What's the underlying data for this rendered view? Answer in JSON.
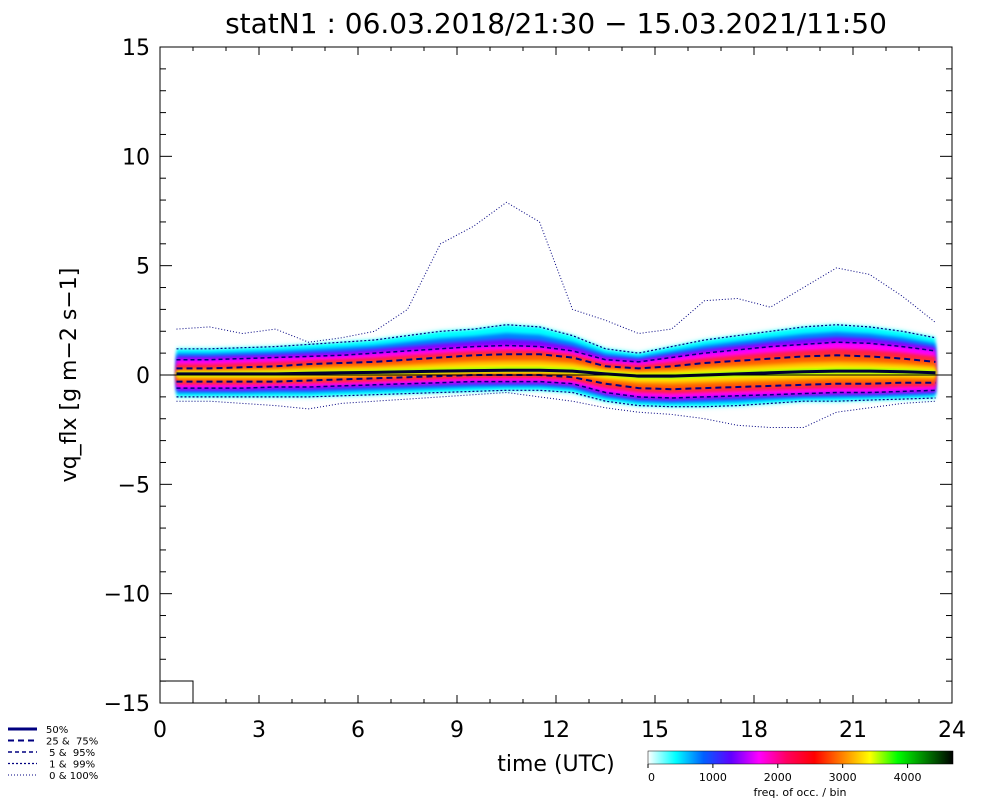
{
  "chart_data": {
    "type": "heatmap",
    "title": "statN1 : 06.03.2018/21:30 − 15.03.2021/11:50",
    "xlabel": "time (UTC)",
    "ylabel": "vq_flx [g m−2 s−1]",
    "xlim": [
      0,
      24
    ],
    "ylim": [
      -15,
      15
    ],
    "x_ticks": [
      "0",
      "3",
      "6",
      "9",
      "12",
      "15",
      "18",
      "21",
      "24"
    ],
    "y_ticks": [
      "15",
      "10",
      "5",
      "0",
      "−5",
      "−10",
      "−15"
    ],
    "x_tick_values": [
      0,
      3,
      6,
      9,
      12,
      15,
      18,
      21,
      24
    ],
    "y_tick_values": [
      15,
      10,
      5,
      0,
      -5,
      -10,
      -15
    ],
    "colorbar": {
      "label": "freq. of occ. / bin",
      "ticks": [
        "0",
        "1000",
        "2000",
        "3000",
        "4000"
      ],
      "tick_values": [
        0,
        1000,
        2000,
        3000,
        4000
      ],
      "range": [
        0,
        4700
      ],
      "colors": [
        "#ffffff",
        "#00ffff",
        "#0060ff",
        "#6000ff",
        "#ff00ff",
        "#ff0060",
        "#ff0000",
        "#ff8000",
        "#ffff00",
        "#00ff00",
        "#008000",
        "#000000"
      ]
    },
    "x": [
      0.5,
      1.5,
      2.5,
      3.5,
      4.5,
      5.5,
      6.5,
      7.5,
      8.5,
      9.5,
      10.5,
      11.5,
      12.5,
      13.5,
      14.5,
      15.5,
      16.5,
      17.5,
      18.5,
      19.5,
      20.5,
      21.5,
      22.5,
      23.5
    ],
    "series": [
      {
        "name": "50%",
        "style": "solid",
        "values": [
          0.05,
          0.05,
          0.05,
          0.05,
          0.08,
          0.1,
          0.12,
          0.15,
          0.18,
          0.2,
          0.22,
          0.22,
          0.18,
          0.05,
          -0.05,
          -0.05,
          0.0,
          0.05,
          0.1,
          0.15,
          0.18,
          0.18,
          0.15,
          0.1
        ]
      },
      {
        "name": "25 & 75%",
        "style": "dashed",
        "values": [
          0.3,
          0.3,
          0.35,
          0.4,
          0.5,
          0.55,
          0.6,
          0.7,
          0.8,
          0.9,
          0.95,
          0.95,
          0.8,
          0.4,
          0.3,
          0.4,
          0.55,
          0.65,
          0.75,
          0.85,
          0.9,
          0.85,
          0.75,
          0.6
        ]
      },
      {
        "name": "25 & 75%",
        "style": "dashed",
        "values": [
          -0.3,
          -0.3,
          -0.3,
          -0.3,
          -0.25,
          -0.2,
          -0.15,
          -0.1,
          -0.05,
          0.0,
          0.0,
          0.0,
          -0.1,
          -0.4,
          -0.6,
          -0.65,
          -0.6,
          -0.55,
          -0.5,
          -0.45,
          -0.4,
          -0.4,
          -0.35,
          -0.35
        ]
      },
      {
        "name": "5 & 95%",
        "style": "dashdot",
        "values": [
          0.7,
          0.7,
          0.75,
          0.8,
          0.85,
          0.9,
          1.0,
          1.1,
          1.2,
          1.3,
          1.35,
          1.3,
          1.1,
          0.7,
          0.6,
          0.8,
          1.0,
          1.15,
          1.3,
          1.4,
          1.5,
          1.45,
          1.3,
          1.1
        ]
      },
      {
        "name": "5 & 95%",
        "style": "dashdot",
        "values": [
          -0.6,
          -0.6,
          -0.6,
          -0.55,
          -0.55,
          -0.5,
          -0.45,
          -0.4,
          -0.35,
          -0.3,
          -0.3,
          -0.3,
          -0.4,
          -0.8,
          -1.0,
          -1.05,
          -1.0,
          -0.95,
          -0.9,
          -0.85,
          -0.8,
          -0.8,
          -0.75,
          -0.7
        ]
      },
      {
        "name": "1 & 99%",
        "style": "dotted",
        "values": [
          1.2,
          1.2,
          1.25,
          1.3,
          1.4,
          1.5,
          1.6,
          1.8,
          2.0,
          2.1,
          2.3,
          2.2,
          1.8,
          1.2,
          1.0,
          1.3,
          1.6,
          1.8,
          2.0,
          2.2,
          2.3,
          2.2,
          2.0,
          1.7
        ]
      },
      {
        "name": "1 & 99%",
        "style": "dotted",
        "values": [
          -1.0,
          -1.0,
          -1.0,
          -1.0,
          -1.0,
          -0.95,
          -0.9,
          -0.85,
          -0.8,
          -0.75,
          -0.7,
          -0.7,
          -0.8,
          -1.2,
          -1.4,
          -1.45,
          -1.45,
          -1.4,
          -1.3,
          -1.2,
          -1.2,
          -1.15,
          -1.1,
          -1.05
        ]
      },
      {
        "name": "0 & 100%",
        "style": "finedot",
        "values": [
          2.1,
          2.2,
          1.9,
          2.1,
          1.5,
          1.7,
          2.0,
          3.0,
          6.0,
          6.8,
          7.9,
          7.0,
          3.0,
          2.5,
          1.9,
          2.1,
          3.4,
          3.5,
          3.1,
          4.0,
          4.9,
          4.6,
          3.6,
          2.4
        ]
      },
      {
        "name": "0 & 100%",
        "style": "finedot",
        "values": [
          -1.2,
          -1.2,
          -1.3,
          -1.4,
          -1.55,
          -1.3,
          -1.2,
          -1.1,
          -1.0,
          -0.9,
          -0.8,
          -1.0,
          -1.2,
          -1.5,
          -1.7,
          -1.8,
          -2.0,
          -2.3,
          -2.4,
          -2.4,
          -1.7,
          -1.5,
          -1.3,
          -1.2
        ]
      }
    ]
  },
  "legend": [
    {
      "label": "50%",
      "style": "solid"
    },
    {
      "label": "25 &  75%",
      "style": "dashed"
    },
    {
      "label": " 5 &  95%",
      "style": "dashdot"
    },
    {
      "label": " 1 &  99%",
      "style": "dotted"
    },
    {
      "label": " 0 & 100%",
      "style": "finedot"
    }
  ],
  "colors": {
    "line": "#000080",
    "axis": "#000000",
    "bg": "#ffffff"
  }
}
